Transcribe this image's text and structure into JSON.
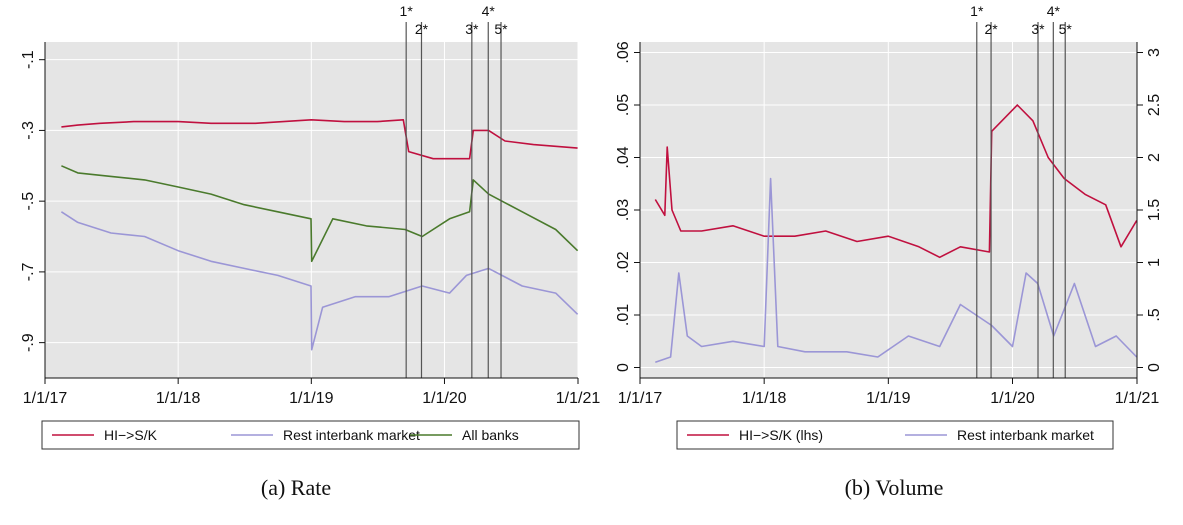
{
  "colors": {
    "hi": "#c0103f",
    "rest": "#9b96d6",
    "all": "#4a7a2c",
    "plot_bg": "#e5e5e5",
    "grid": "#ffffff",
    "event_line": "#555555"
  },
  "chart_data": [
    {
      "type": "line",
      "caption": "(a) Rate",
      "title": "",
      "xlabel": "",
      "ylabel": "",
      "x_ticks": [
        "1/1/17",
        "1/1/18",
        "1/1/19",
        "1/1/20",
        "1/1/21"
      ],
      "xlim": [
        "2017-01-01",
        "2021-01-01"
      ],
      "ylim": [
        -1.0,
        -0.05
      ],
      "y_ticks": [
        "-.1",
        "-.3",
        "-.5",
        "-.7",
        "-.9"
      ],
      "y_tick_values": [
        -0.1,
        -0.3,
        -0.5,
        -0.7,
        -0.9
      ],
      "grid": true,
      "legend_position": "bottom",
      "events": [
        {
          "label": "1*",
          "date": "2019-09-18"
        },
        {
          "label": "2*",
          "date": "2019-10-30"
        },
        {
          "label": "3*",
          "date": "2020-03-16"
        },
        {
          "label": "4*",
          "date": "2020-04-30"
        },
        {
          "label": "5*",
          "date": "2020-06-04"
        }
      ],
      "series": [
        {
          "name": "HI−>S/K",
          "x": [
            "2017-02-15",
            "2017-04-01",
            "2017-06-01",
            "2017-09-01",
            "2018-01-01",
            "2018-04-01",
            "2018-08-01",
            "2019-01-01",
            "2019-04-01",
            "2019-07-01",
            "2019-09-10",
            "2019-09-25",
            "2019-12-01",
            "2020-03-10",
            "2020-03-20",
            "2020-05-01",
            "2020-06-15",
            "2020-09-01",
            "2020-12-31"
          ],
          "y": [
            -0.29,
            -0.285,
            -0.28,
            -0.275,
            -0.275,
            -0.28,
            -0.28,
            -0.27,
            -0.275,
            -0.275,
            -0.27,
            -0.36,
            -0.38,
            -0.38,
            -0.3,
            -0.3,
            -0.33,
            -0.34,
            -0.35
          ]
        },
        {
          "name": "Rest interbank market",
          "x": [
            "2017-02-15",
            "2017-04-01",
            "2017-07-01",
            "2017-10-01",
            "2018-01-01",
            "2018-04-01",
            "2018-07-01",
            "2018-10-01",
            "2018-12-31",
            "2019-01-02",
            "2019-02-01",
            "2019-05-01",
            "2019-08-01",
            "2019-11-01",
            "2020-01-15",
            "2020-03-01",
            "2020-05-01",
            "2020-08-01",
            "2020-11-01",
            "2020-12-31"
          ],
          "y": [
            -0.53,
            -0.56,
            -0.59,
            -0.6,
            -0.64,
            -0.67,
            -0.69,
            -0.71,
            -0.74,
            -0.92,
            -0.8,
            -0.77,
            -0.77,
            -0.74,
            -0.76,
            -0.71,
            -0.69,
            -0.74,
            -0.76,
            -0.82
          ]
        },
        {
          "name": "All banks",
          "x": [
            "2017-02-15",
            "2017-04-01",
            "2017-07-01",
            "2017-10-01",
            "2018-01-01",
            "2018-04-01",
            "2018-07-01",
            "2018-10-01",
            "2018-12-31",
            "2019-01-02",
            "2019-03-01",
            "2019-06-01",
            "2019-09-15",
            "2019-11-01",
            "2020-01-15",
            "2020-03-10",
            "2020-03-20",
            "2020-05-01",
            "2020-08-01",
            "2020-11-01",
            "2020-12-31"
          ],
          "y": [
            -0.4,
            -0.42,
            -0.43,
            -0.44,
            -0.46,
            -0.48,
            -0.51,
            -0.53,
            -0.55,
            -0.67,
            -0.55,
            -0.57,
            -0.58,
            -0.6,
            -0.55,
            -0.53,
            -0.44,
            -0.48,
            -0.53,
            -0.58,
            -0.64
          ]
        }
      ]
    },
    {
      "type": "line",
      "caption": "(b) Volume",
      "title": "",
      "xlabel": "",
      "ylabel": "",
      "x_ticks": [
        "1/1/17",
        "1/1/18",
        "1/1/19",
        "1/1/20",
        "1/1/21"
      ],
      "xlim": [
        "2017-01-01",
        "2021-01-01"
      ],
      "ylim": [
        -0.002,
        0.062
      ],
      "y_ticks": [
        "0",
        ".01",
        ".02",
        ".03",
        ".04",
        ".05",
        ".06"
      ],
      "y_tick_values": [
        0,
        0.01,
        0.02,
        0.03,
        0.04,
        0.05,
        0.06
      ],
      "y2lim": [
        -0.1,
        3.1
      ],
      "y2_ticks": [
        "0",
        ".5",
        "1",
        "1.5",
        "2",
        "2.5",
        "3"
      ],
      "y2_tick_values": [
        0,
        0.5,
        1,
        1.5,
        2,
        2.5,
        3
      ],
      "grid": true,
      "legend_position": "bottom",
      "events": [
        {
          "label": "1*",
          "date": "2019-09-18"
        },
        {
          "label": "2*",
          "date": "2019-10-30"
        },
        {
          "label": "3*",
          "date": "2020-03-16"
        },
        {
          "label": "4*",
          "date": "2020-04-30"
        },
        {
          "label": "5*",
          "date": "2020-06-04"
        }
      ],
      "series": [
        {
          "name": "HI−>S/K (lhs)",
          "axis": "left",
          "x": [
            "2017-02-15",
            "2017-03-15",
            "2017-03-22",
            "2017-04-05",
            "2017-05-01",
            "2017-07-01",
            "2017-10-01",
            "2018-01-01",
            "2018-04-01",
            "2018-07-01",
            "2018-10-01",
            "2019-01-01",
            "2019-04-01",
            "2019-06-01",
            "2019-08-01",
            "2019-10-25",
            "2019-11-01",
            "2020-01-15",
            "2020-03-01",
            "2020-04-15",
            "2020-06-01",
            "2020-08-01",
            "2020-10-01",
            "2020-11-15",
            "2020-12-31"
          ],
          "y": [
            0.032,
            0.029,
            0.042,
            0.03,
            0.026,
            0.026,
            0.027,
            0.025,
            0.025,
            0.026,
            0.024,
            0.025,
            0.023,
            0.021,
            0.023,
            0.022,
            0.045,
            0.05,
            0.047,
            0.04,
            0.036,
            0.033,
            0.031,
            0.023,
            0.028
          ]
        },
        {
          "name": "Rest interbank market",
          "axis": "right",
          "x": [
            "2017-02-15",
            "2017-04-01",
            "2017-04-25",
            "2017-05-20",
            "2017-07-01",
            "2017-10-01",
            "2018-01-01",
            "2018-01-20",
            "2018-02-10",
            "2018-05-01",
            "2018-09-01",
            "2018-12-01",
            "2019-03-01",
            "2019-06-01",
            "2019-08-01",
            "2019-11-01",
            "2020-01-01",
            "2020-02-10",
            "2020-03-15",
            "2020-05-01",
            "2020-07-01",
            "2020-09-01",
            "2020-11-01",
            "2020-12-31"
          ],
          "y": [
            0.05,
            0.1,
            0.9,
            0.3,
            0.2,
            0.25,
            0.2,
            1.8,
            0.2,
            0.15,
            0.15,
            0.1,
            0.3,
            0.2,
            0.6,
            0.4,
            0.2,
            0.9,
            0.8,
            0.3,
            0.8,
            0.2,
            0.3,
            0.1
          ]
        }
      ]
    }
  ]
}
